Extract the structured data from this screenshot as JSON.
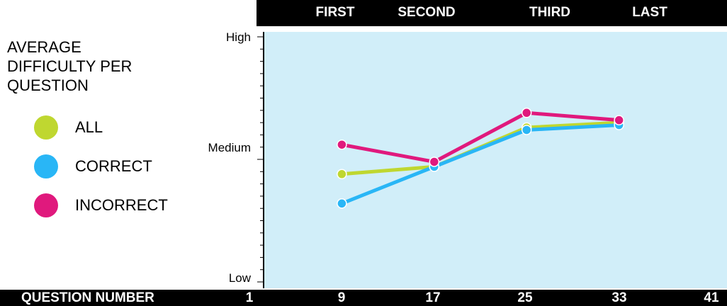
{
  "header": {
    "segments": [
      "FIRST",
      "SECOND",
      "THIRD",
      "LAST"
    ]
  },
  "legend": {
    "title": "AVERAGE DIFFICULTY PER QUESTION",
    "items": [
      {
        "label": "ALL",
        "color": "#bfd730"
      },
      {
        "label": "CORRECT",
        "color": "#29b6f6"
      },
      {
        "label": "INCORRECT",
        "color": "#e0197d"
      }
    ]
  },
  "footer": {
    "label": "QUESTION NUMBER"
  },
  "chart_data": {
    "type": "line",
    "xlabel": "QUESTION NUMBER",
    "x_ticks": [
      1,
      9,
      17,
      25,
      33,
      41
    ],
    "xlim": [
      1,
      41
    ],
    "y_tick_labels": [
      "High",
      "Medium",
      "Low"
    ],
    "y_tick_values": [
      1,
      0.5,
      0
    ],
    "ylim": [
      0,
      1
    ],
    "top_segments": [
      "FIRST",
      "SECOND",
      "THIRD",
      "LAST"
    ],
    "x": [
      9,
      17,
      25,
      33
    ],
    "series": [
      {
        "name": "ALL",
        "color": "#bfd730",
        "values": [
          0.44,
          0.47,
          0.63,
          0.65
        ]
      },
      {
        "name": "CORRECT",
        "color": "#29b6f6",
        "values": [
          0.32,
          0.47,
          0.62,
          0.64
        ]
      },
      {
        "name": "INCORRECT",
        "color": "#e0197d",
        "values": [
          0.56,
          0.49,
          0.69,
          0.66
        ]
      }
    ],
    "background": "#d1eef9",
    "grid": false
  }
}
